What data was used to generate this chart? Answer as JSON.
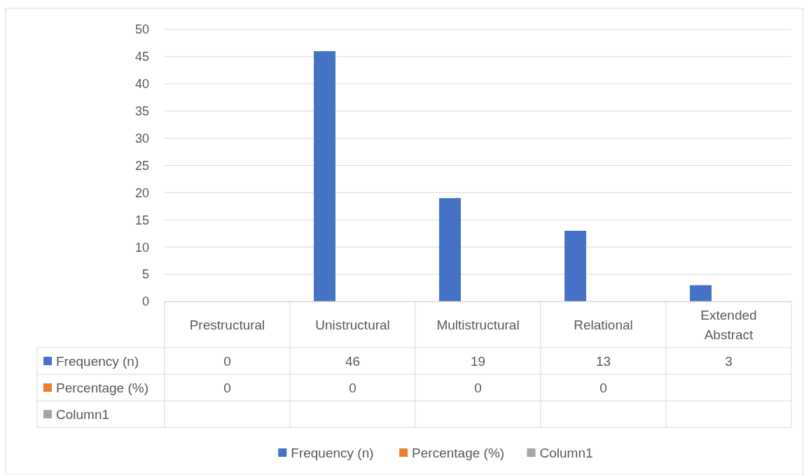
{
  "chart_data": {
    "type": "bar",
    "categories": [
      "Prestructural",
      "Unistructural",
      "Multistructural",
      "Relational",
      "Extended Abstract"
    ],
    "series": [
      {
        "name": "Frequency (n)",
        "color": "#4472c4",
        "values": [
          0,
          46,
          19,
          13,
          3
        ]
      },
      {
        "name": "Percentage (%)",
        "color": "#ed7d31",
        "values": [
          0,
          0,
          0,
          0,
          null
        ]
      },
      {
        "name": "Column1",
        "color": "#a5a5a5",
        "values": [
          null,
          null,
          null,
          null,
          null
        ]
      }
    ],
    "ylim": [
      0,
      50
    ],
    "yticks": [
      0,
      5,
      10,
      15,
      20,
      25,
      30,
      35,
      40,
      45,
      50
    ],
    "grid": "y",
    "legend": "bottom",
    "data_labels": true
  }
}
